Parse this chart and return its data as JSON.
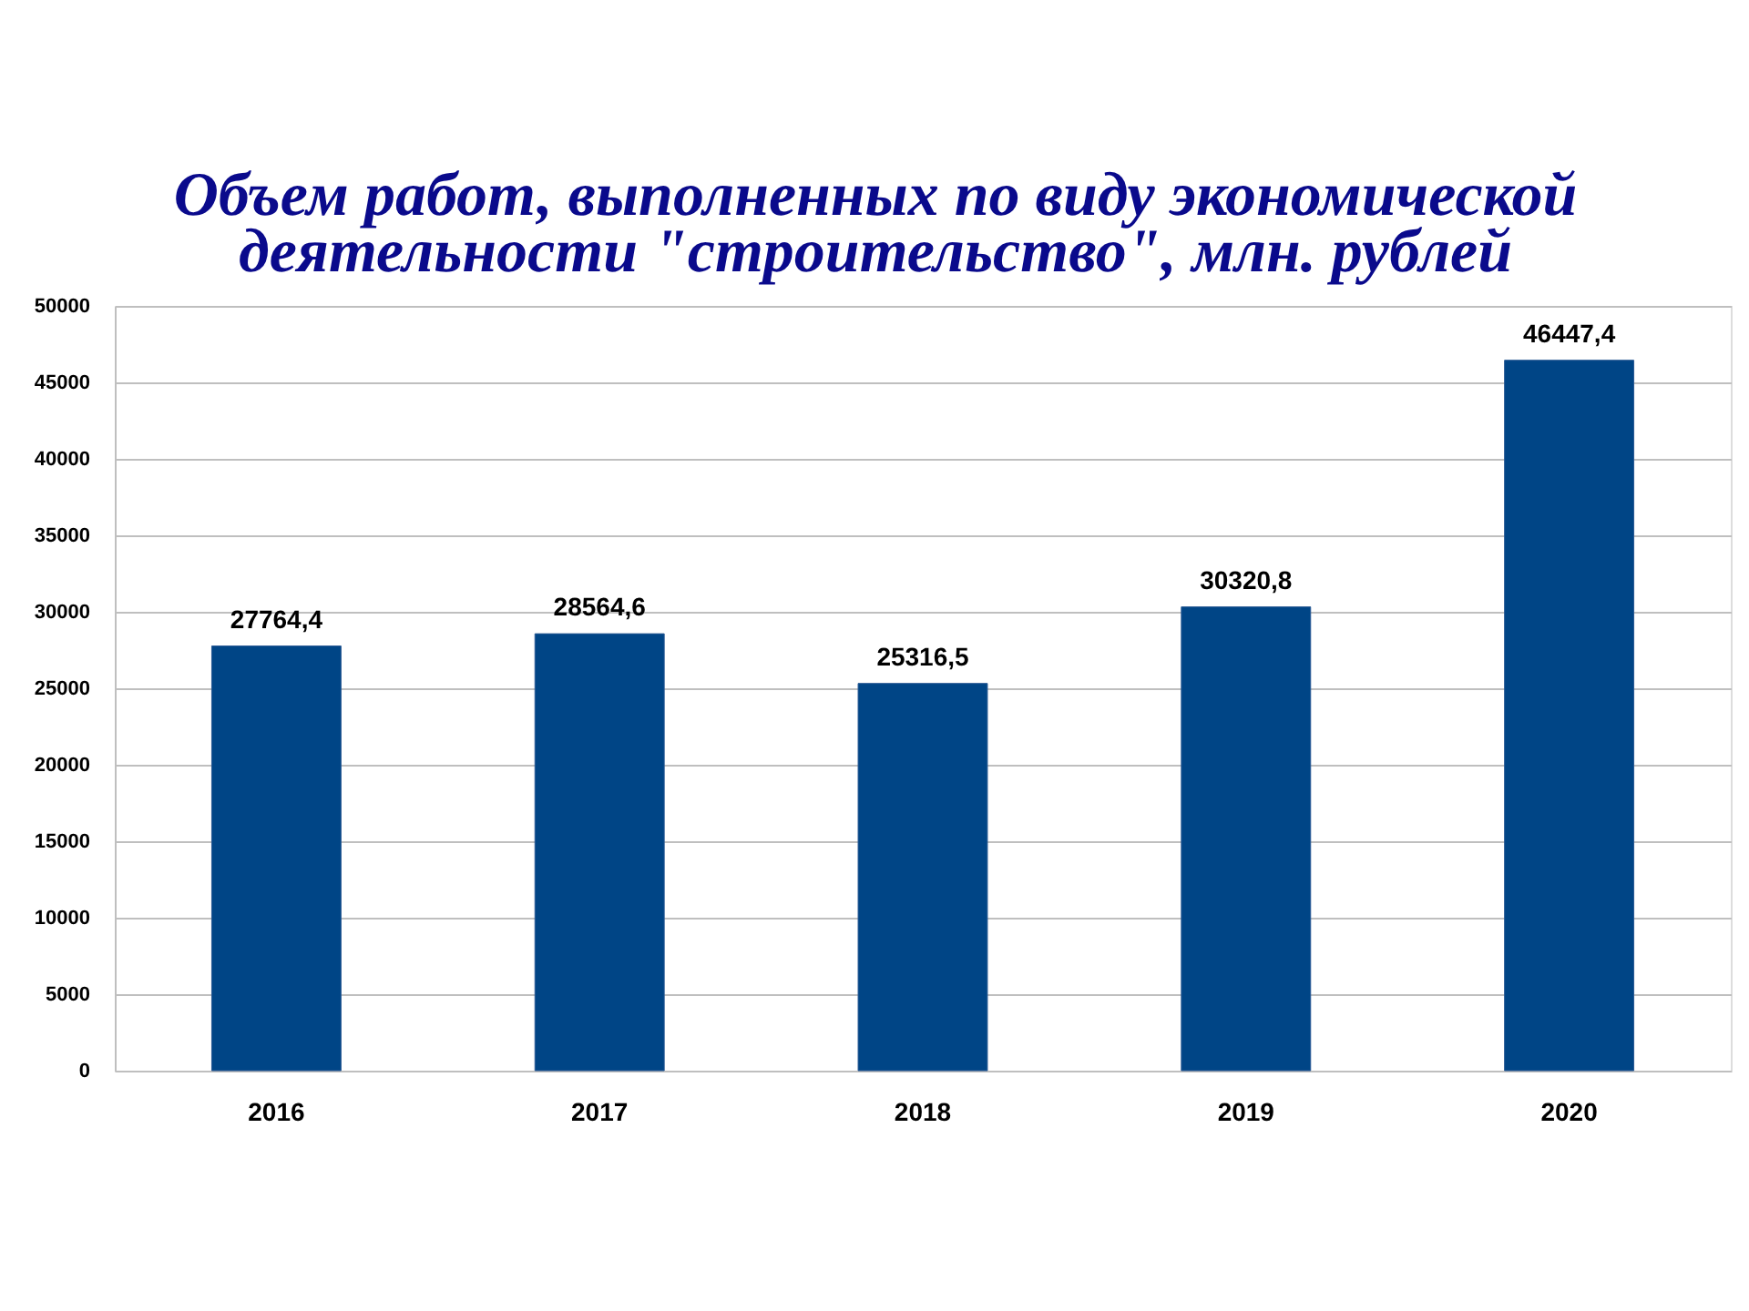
{
  "chart_data": {
    "type": "bar",
    "title": "Объем работ, выполненных по виду экономической деятельности \"строительство\", млн. рублей",
    "categories": [
      "2016",
      "2017",
      "2018",
      "2019",
      "2020"
    ],
    "values": [
      27764.4,
      28564.6,
      25316.5,
      30320.8,
      46447.4
    ],
    "value_labels": [
      "27764,4",
      "28564,6",
      "25316,5",
      "30320,8",
      "46447,4"
    ],
    "color": "#004586",
    "ylim": [
      0,
      50000
    ],
    "yticks": [
      0,
      5000,
      10000,
      15000,
      20000,
      25000,
      30000,
      35000,
      40000,
      45000,
      50000
    ],
    "grid": "y"
  }
}
